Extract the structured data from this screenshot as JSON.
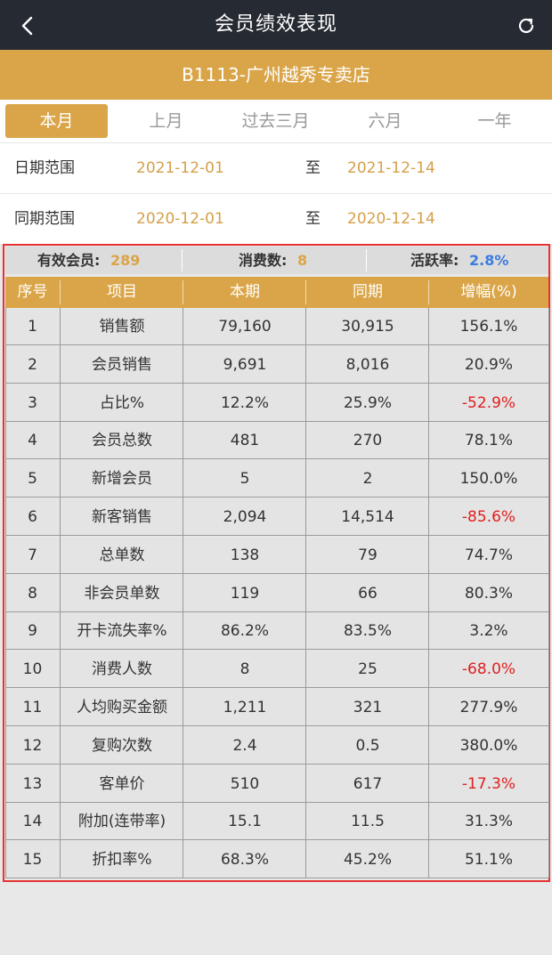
{
  "nav": {
    "title": "会员绩效表现",
    "back_icon": "chevron-left-icon",
    "refresh_icon": "refresh-icon"
  },
  "store": {
    "name": "B1113-广州越秀专卖店"
  },
  "tabs": [
    {
      "label": "本月",
      "active": true
    },
    {
      "label": "上月",
      "active": false
    },
    {
      "label": "过去三月",
      "active": false
    },
    {
      "label": "六月",
      "active": false
    },
    {
      "label": "一年",
      "active": false
    }
  ],
  "date_range": {
    "label": "日期范围",
    "start": "2021-12-01",
    "to": "至",
    "end": "2021-12-14"
  },
  "same_period": {
    "label": "同期范围",
    "start": "2020-12-01",
    "to": "至",
    "end": "2020-12-14"
  },
  "summary": {
    "valid_members_label": "有效会员:",
    "valid_members": "289",
    "consumers_label": "消费数:",
    "consumers": "8",
    "active_rate_label": "活跃率:",
    "active_rate": "2.8%"
  },
  "table": {
    "headers": [
      "序号",
      "项目",
      "本期",
      "同期",
      "增幅(%)"
    ],
    "rows": [
      {
        "no": "1",
        "item": "销售额",
        "current": "79,160",
        "prior": "30,915",
        "growth": "156.1%",
        "negative": false
      },
      {
        "no": "2",
        "item": "会员销售",
        "current": "9,691",
        "prior": "8,016",
        "growth": "20.9%",
        "negative": false
      },
      {
        "no": "3",
        "item": "占比%",
        "current": "12.2%",
        "prior": "25.9%",
        "growth": "-52.9%",
        "negative": true
      },
      {
        "no": "4",
        "item": "会员总数",
        "current": "481",
        "prior": "270",
        "growth": "78.1%",
        "negative": false
      },
      {
        "no": "5",
        "item": "新增会员",
        "current": "5",
        "prior": "2",
        "growth": "150.0%",
        "negative": false
      },
      {
        "no": "6",
        "item": "新客销售",
        "current": "2,094",
        "prior": "14,514",
        "growth": "-85.6%",
        "negative": true
      },
      {
        "no": "7",
        "item": "总单数",
        "current": "138",
        "prior": "79",
        "growth": "74.7%",
        "negative": false
      },
      {
        "no": "8",
        "item": "非会员单数",
        "current": "119",
        "prior": "66",
        "growth": "80.3%",
        "negative": false
      },
      {
        "no": "9",
        "item": "开卡流失率%",
        "current": "86.2%",
        "prior": "83.5%",
        "growth": "3.2%",
        "negative": false
      },
      {
        "no": "10",
        "item": "消费人数",
        "current": "8",
        "prior": "25",
        "growth": "-68.0%",
        "negative": true
      },
      {
        "no": "11",
        "item": "人均购买金额",
        "current": "1,211",
        "prior": "321",
        "growth": "277.9%",
        "negative": false
      },
      {
        "no": "12",
        "item": "复购次数",
        "current": "2.4",
        "prior": "0.5",
        "growth": "380.0%",
        "negative": false
      },
      {
        "no": "13",
        "item": "客单价",
        "current": "510",
        "prior": "617",
        "growth": "-17.3%",
        "negative": true
      },
      {
        "no": "14",
        "item": "附加(连带率)",
        "current": "15.1",
        "prior": "11.5",
        "growth": "31.3%",
        "negative": false
      },
      {
        "no": "15",
        "item": "折扣率%",
        "current": "68.3%",
        "prior": "45.2%",
        "growth": "51.1%",
        "negative": false
      }
    ]
  },
  "colors": {
    "accent": "#daa548",
    "navbar": "#262a33",
    "date_value": "#d4a04a",
    "negative": "#e02020",
    "active_rate": "#3b7be0",
    "highlight_frame": "#e53333"
  }
}
